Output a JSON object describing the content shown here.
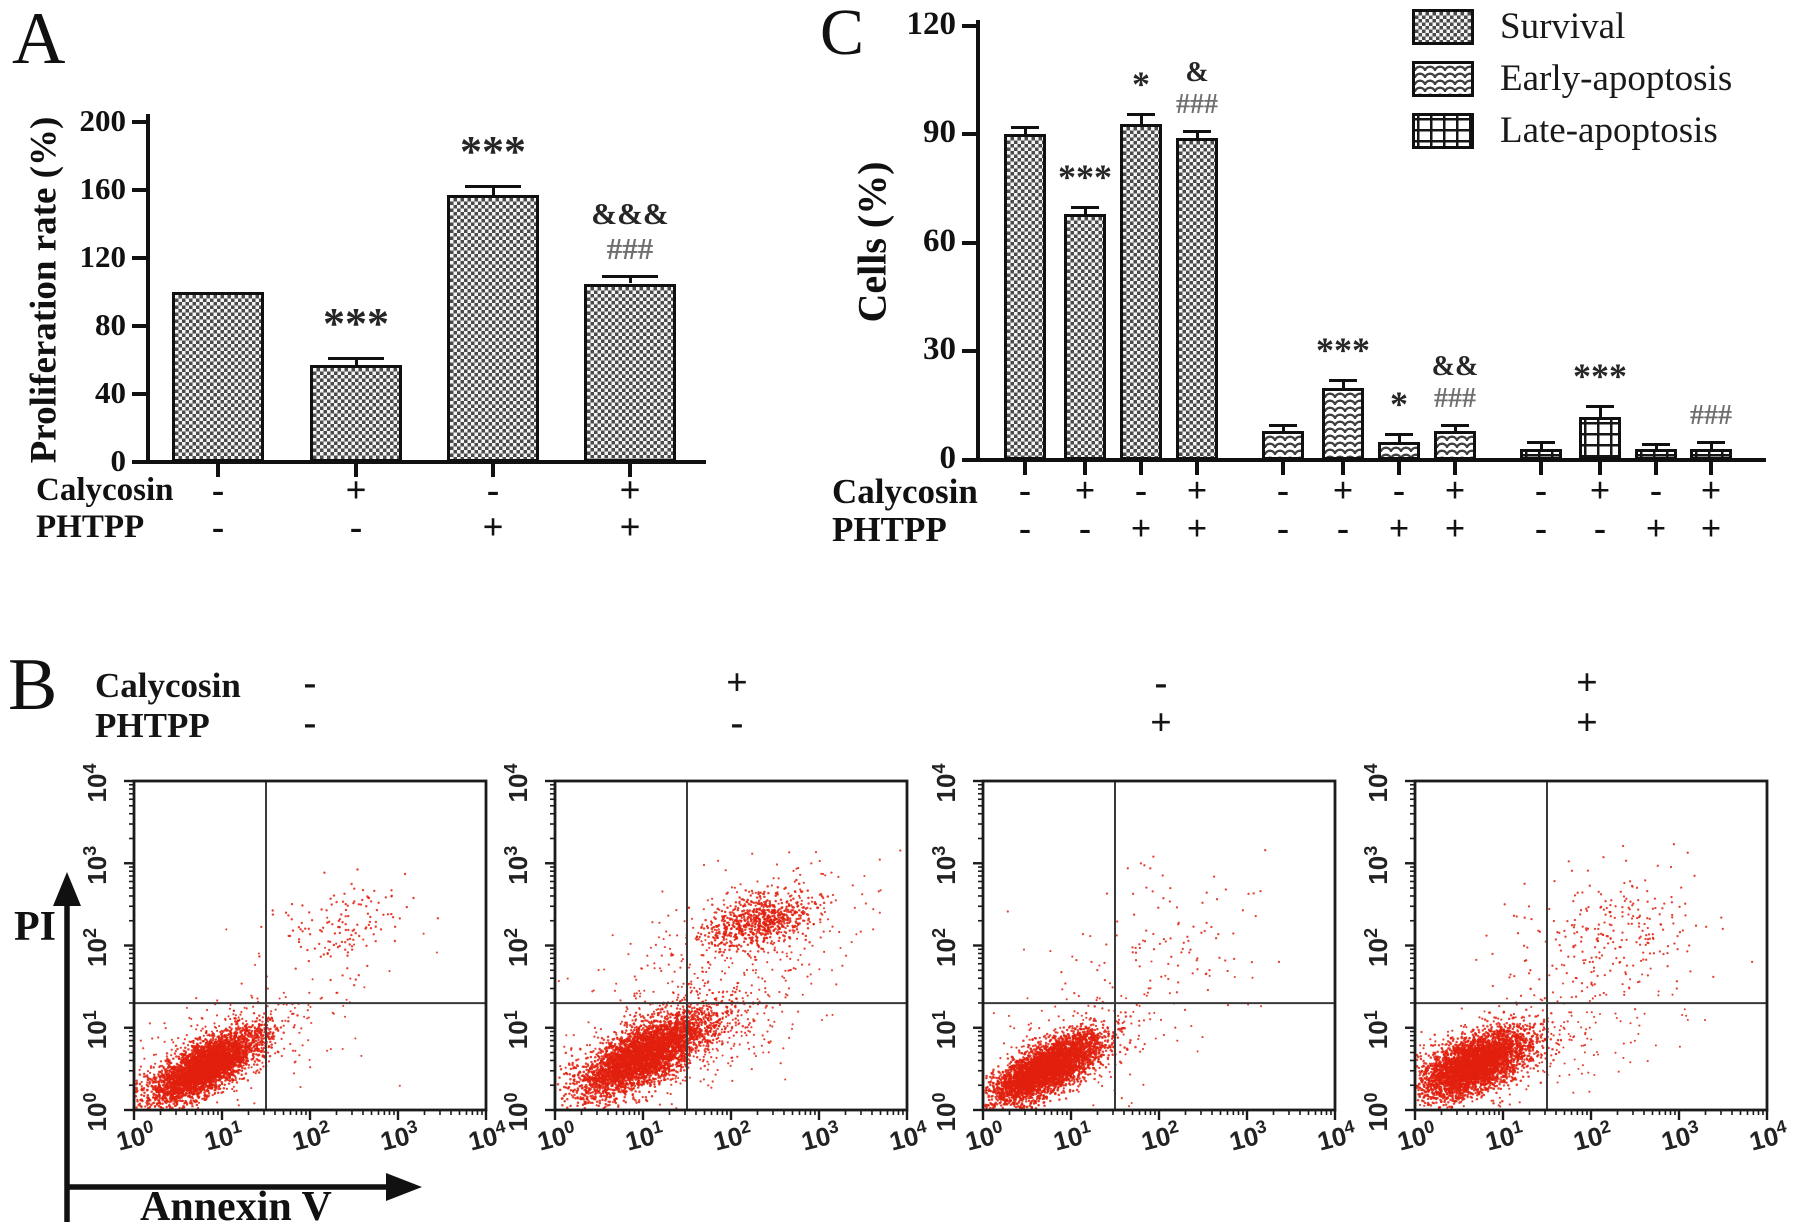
{
  "panels": {
    "a_label": "A",
    "b_label": "B",
    "c_label": "C"
  },
  "chart_data": [
    {
      "id": "panel-a-proliferation",
      "type": "bar",
      "ylabel": "Proliferation rate (%)",
      "ylim": [
        0,
        200
      ],
      "yticks": [
        0,
        40,
        80,
        120,
        160,
        200
      ],
      "values": [
        100,
        57,
        157,
        105
      ],
      "errors": [
        0,
        3,
        4,
        3
      ],
      "annotations": [
        [],
        [
          "***"
        ],
        [
          "***"
        ],
        [
          "&&&",
          "###"
        ]
      ],
      "pattern": "checker",
      "conditions": {
        "row_labels": [
          "Calycosin",
          "PHTPP"
        ],
        "rows": [
          [
            "-",
            "+",
            "-",
            "+"
          ],
          [
            "-",
            "-",
            "+",
            "+"
          ]
        ]
      }
    },
    {
      "id": "panel-c-apoptosis",
      "type": "grouped-bar",
      "ylabel": "Cells (%)",
      "ylim": [
        0,
        120
      ],
      "yticks": [
        0,
        30,
        60,
        90,
        120
      ],
      "legend": [
        {
          "label": "Survival",
          "pattern": "checker"
        },
        {
          "label": "Early-apoptosis",
          "pattern": "wave"
        },
        {
          "label": "Late-apoptosis",
          "pattern": "grid"
        }
      ],
      "series": [
        {
          "name": "Survival",
          "values": [
            90,
            68,
            93,
            89
          ],
          "errors": [
            1.5,
            1.5,
            2,
            1.5
          ],
          "annotations": [
            [],
            [
              "***"
            ],
            [
              "*"
            ],
            [
              "&",
              "###"
            ]
          ]
        },
        {
          "name": "Early-apoptosis",
          "values": [
            8,
            20,
            5,
            8
          ],
          "errors": [
            1,
            1.5,
            1.5,
            1
          ],
          "annotations": [
            [],
            [
              "***"
            ],
            [
              "*"
            ],
            [
              "&&",
              "###"
            ]
          ]
        },
        {
          "name": "Late-apoptosis",
          "values": [
            3,
            12,
            3,
            3
          ],
          "errors": [
            1.5,
            2.5,
            1,
            1.5
          ],
          "annotations": [
            [],
            [
              "***"
            ],
            [],
            [
              "###"
            ]
          ]
        }
      ],
      "conditions": {
        "row_labels": [
          "Calycosin",
          "PHTPP"
        ],
        "rows": [
          [
            "-",
            "+",
            "-",
            "+",
            "-",
            "+",
            "-",
            "+",
            "-",
            "+",
            "-",
            "+"
          ],
          [
            "-",
            "-",
            "+",
            "+",
            "-",
            "-",
            "+",
            "+",
            "-",
            "-",
            "+",
            "+"
          ]
        ]
      }
    },
    {
      "id": "panel-b-flow-cytometry",
      "type": "scatter",
      "xlabel": "Annexin V",
      "ylabel": "PI",
      "tick_base": "10",
      "x_tick_exponents": [
        0,
        1,
        2,
        3,
        4
      ],
      "y_tick_exponents": [
        0,
        1,
        2,
        3,
        4
      ],
      "quadrant_gate": {
        "x_log": 1.5,
        "y_log": 1.3
      },
      "point_color": "#e2200e",
      "conditions": {
        "row_labels": [
          "Calycosin",
          "PHTPP"
        ]
      },
      "plots": [
        {
          "calycosin": "-",
          "phtpp": "-",
          "clusters": [
            {
              "n": 3600,
              "cx": 0.82,
              "cy": 0.52,
              "sa": 0.36,
              "sb": 0.13,
              "angle": 35,
              "r": 1.25
            },
            {
              "n": 420,
              "cx": 0.88,
              "cy": 0.62,
              "sa": 0.6,
              "sb": 0.28,
              "angle": 35,
              "r": 1.1
            },
            {
              "n": 140,
              "cx": 2.35,
              "cy": 2.25,
              "sa": 0.45,
              "sb": 0.32,
              "angle": 28,
              "r": 1.2
            },
            {
              "n": 80,
              "cx": 1.5,
              "cy": 1.1,
              "sa": 0.85,
              "sb": 0.5,
              "angle": 30,
              "r": 1.05
            }
          ]
        },
        {
          "calycosin": "+",
          "phtpp": "-",
          "clusters": [
            {
              "n": 3600,
              "cx": 1.0,
              "cy": 0.66,
              "sa": 0.42,
              "sb": 0.16,
              "angle": 33,
              "r": 1.25
            },
            {
              "n": 700,
              "cx": 1.35,
              "cy": 0.85,
              "sa": 0.6,
              "sb": 0.3,
              "angle": 30,
              "r": 1.1
            },
            {
              "n": 620,
              "cx": 2.33,
              "cy": 2.3,
              "sa": 0.3,
              "sb": 0.15,
              "angle": 18,
              "r": 1.25
            },
            {
              "n": 280,
              "cx": 2.3,
              "cy": 2.25,
              "sa": 0.6,
              "sb": 0.38,
              "angle": 22,
              "r": 1.1
            },
            {
              "n": 150,
              "cx": 1.8,
              "cy": 1.4,
              "sa": 0.9,
              "sb": 0.6,
              "angle": 30,
              "r": 1.05
            }
          ]
        },
        {
          "calycosin": "-",
          "phtpp": "+",
          "clusters": [
            {
              "n": 3600,
              "cx": 0.72,
              "cy": 0.5,
              "sa": 0.36,
              "sb": 0.14,
              "angle": 34,
              "r": 1.25
            },
            {
              "n": 320,
              "cx": 0.8,
              "cy": 0.6,
              "sa": 0.55,
              "sb": 0.26,
              "angle": 34,
              "r": 1.1
            },
            {
              "n": 100,
              "cx": 2.2,
              "cy": 2.1,
              "sa": 0.55,
              "sb": 0.42,
              "angle": 25,
              "r": 1.15
            },
            {
              "n": 60,
              "cx": 1.5,
              "cy": 1.0,
              "sa": 0.8,
              "sb": 0.5,
              "angle": 25,
              "r": 1.05
            }
          ]
        },
        {
          "calycosin": "+",
          "phtpp": "+",
          "clusters": [
            {
              "n": 3600,
              "cx": 0.68,
              "cy": 0.55,
              "sa": 0.34,
              "sb": 0.16,
              "angle": 32,
              "r": 1.25
            },
            {
              "n": 360,
              "cx": 0.75,
              "cy": 0.62,
              "sa": 0.55,
              "sb": 0.28,
              "angle": 32,
              "r": 1.1
            },
            {
              "n": 260,
              "cx": 2.2,
              "cy": 2.15,
              "sa": 0.55,
              "sb": 0.4,
              "angle": 22,
              "r": 1.15
            },
            {
              "n": 120,
              "cx": 1.8,
              "cy": 0.9,
              "sa": 0.6,
              "sb": 0.35,
              "angle": 12,
              "r": 1.05
            }
          ]
        }
      ]
    }
  ]
}
